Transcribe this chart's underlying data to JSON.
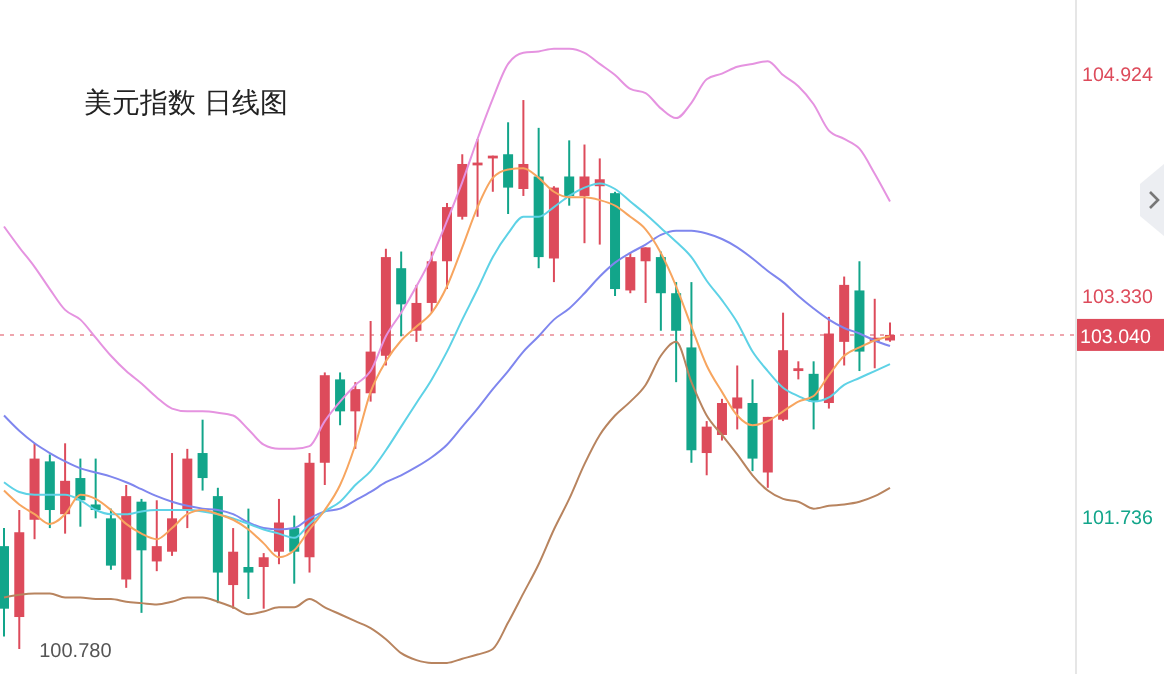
{
  "chart_data": {
    "type": "candlestick",
    "title": "美元指数  日线图",
    "categories": [
      null,
      null,
      null,
      null,
      null,
      null,
      null,
      null,
      null,
      null,
      null,
      null,
      null,
      null,
      null,
      null,
      null,
      null,
      null,
      null,
      null,
      null,
      null,
      null,
      null,
      null,
      null,
      null,
      null,
      null,
      null,
      null,
      null,
      null,
      null,
      null,
      null,
      null,
      null,
      null,
      null,
      null,
      null,
      null,
      null,
      null,
      null,
      null,
      null,
      null,
      null,
      null,
      null,
      null,
      null,
      null,
      null,
      null,
      null
    ],
    "ohlc": [
      [
        101.52,
        101.65,
        100.87,
        101.07
      ],
      [
        101.01,
        101.78,
        100.78,
        101.62
      ],
      [
        101.71,
        102.26,
        101.57,
        102.15
      ],
      [
        102.13,
        102.18,
        101.65,
        101.78
      ],
      [
        101.75,
        102.26,
        101.61,
        101.99
      ],
      [
        102.01,
        102.15,
        101.66,
        101.85
      ],
      [
        101.82,
        102.15,
        101.72,
        101.78
      ],
      [
        101.72,
        101.79,
        101.35,
        101.38
      ],
      [
        101.28,
        101.96,
        101.22,
        101.88
      ],
      [
        101.84,
        101.86,
        101.04,
        101.49
      ],
      [
        101.41,
        101.85,
        101.34,
        101.52
      ],
      [
        101.48,
        102.19,
        101.45,
        101.72
      ],
      [
        101.78,
        102.22,
        101.65,
        102.15
      ],
      [
        102.19,
        102.43,
        101.92,
        102.01
      ],
      [
        101.88,
        101.94,
        101.11,
        101.33
      ],
      [
        101.24,
        101.65,
        101.07,
        101.48
      ],
      [
        101.37,
        101.79,
        101.14,
        101.33
      ],
      [
        101.37,
        101.47,
        101.07,
        101.44
      ],
      [
        101.48,
        101.86,
        101.39,
        101.69
      ],
      [
        101.65,
        101.74,
        101.25,
        101.48
      ],
      [
        101.44,
        102.19,
        101.33,
        102.12
      ],
      [
        102.12,
        102.77,
        101.96,
        102.75
      ],
      [
        102.72,
        102.77,
        102.39,
        102.49
      ],
      [
        102.49,
        102.7,
        102.22,
        102.65
      ],
      [
        102.62,
        103.14,
        102.56,
        102.92
      ],
      [
        102.89,
        103.66,
        102.82,
        103.6
      ],
      [
        103.52,
        103.64,
        103.03,
        103.26
      ],
      [
        103.07,
        103.4,
        102.99,
        103.27
      ],
      [
        103.27,
        103.64,
        103.2,
        103.57
      ],
      [
        103.57,
        103.99,
        103.37,
        103.96
      ],
      [
        103.89,
        104.34,
        103.87,
        104.27
      ],
      [
        104.26,
        104.45,
        103.89,
        104.28
      ],
      [
        104.31,
        104.33,
        104.07,
        104.33
      ],
      [
        104.34,
        104.57,
        103.91,
        104.1
      ],
      [
        104.09,
        104.73,
        104.04,
        104.27
      ],
      [
        104.18,
        104.53,
        103.52,
        103.6
      ],
      [
        103.59,
        104.11,
        103.42,
        104.1
      ],
      [
        104.18,
        104.44,
        103.97,
        104.04
      ],
      [
        104.04,
        104.41,
        103.7,
        104.18
      ],
      [
        104.11,
        104.31,
        103.69,
        104.16
      ],
      [
        104.06,
        104.07,
        103.32,
        103.37
      ],
      [
        103.36,
        103.63,
        103.34,
        103.6
      ],
      [
        103.57,
        103.67,
        103.27,
        103.67
      ],
      [
        103.6,
        103.64,
        103.07,
        103.34
      ],
      [
        103.34,
        103.42,
        102.7,
        103.07
      ],
      [
        102.95,
        103.42,
        102.12,
        102.21
      ],
      [
        102.19,
        102.42,
        102.03,
        102.38
      ],
      [
        102.32,
        102.58,
        102.28,
        102.55
      ],
      [
        102.51,
        102.82,
        102.36,
        102.59
      ],
      [
        102.55,
        102.72,
        102.06,
        102.15
      ],
      [
        102.05,
        102.45,
        101.94,
        102.45
      ],
      [
        102.43,
        103.2,
        102.42,
        102.93
      ],
      [
        102.78,
        102.85,
        102.72,
        102.8
      ],
      [
        102.76,
        102.85,
        102.36,
        102.56
      ],
      [
        102.55,
        103.17,
        102.51,
        103.05
      ],
      [
        102.99,
        103.46,
        102.82,
        103.4
      ],
      [
        103.36,
        103.57,
        102.78,
        102.92
      ],
      [
        102.99,
        103.3,
        102.8,
        103.02
      ],
      [
        103.0,
        103.13,
        102.99,
        103.04
      ]
    ],
    "colors": [
      "#12a58a",
      "#dd4b5b",
      "#dd4b5b",
      "#12a58a",
      "#dd4b5b",
      "#12a58a",
      "#12a58a",
      "#12a58a",
      "#dd4b5b",
      "#12a58a",
      "#dd4b5b",
      "#dd4b5b",
      "#dd4b5b",
      "#12a58a",
      "#12a58a",
      "#dd4b5b",
      "#12a58a",
      "#dd4b5b",
      "#dd4b5b",
      "#12a58a",
      "#dd4b5b",
      "#dd4b5b",
      "#12a58a",
      "#dd4b5b",
      "#dd4b5b",
      "#dd4b5b",
      "#12a58a",
      "#dd4b5b",
      "#dd4b5b",
      "#dd4b5b",
      "#dd4b5b",
      "#dd4b5b",
      "#dd4b5b",
      "#12a58a",
      "#dd4b5b",
      "#12a58a",
      "#dd4b5b",
      "#12a58a",
      "#dd4b5b",
      "#dd4b5b",
      "#12a58a",
      "#dd4b5b",
      "#dd4b5b",
      "#12a58a",
      "#12a58a",
      "#12a58a",
      "#dd4b5b",
      "#dd4b5b",
      "#dd4b5b",
      "#12a58a",
      "#dd4b5b",
      "#dd4b5b",
      "#dd4b5b",
      "#12a58a",
      "#dd4b5b",
      "#dd4b5b",
      "#12a58a",
      "#dd4b5b",
      "#dd4b5b"
    ],
    "series": [
      {
        "type": "line",
        "color": "#e593e0",
        "values": [
          103.82,
          103.67,
          103.53,
          103.37,
          103.22,
          103.15,
          103.02,
          102.89,
          102.78,
          102.69,
          102.59,
          102.51,
          102.49,
          102.49,
          102.48,
          102.46,
          102.36,
          102.25,
          102.22,
          102.22,
          102.24,
          102.42,
          102.56,
          102.68,
          102.78,
          103.03,
          103.2,
          103.39,
          103.6,
          103.86,
          104.14,
          104.45,
          104.74,
          104.99,
          105.07,
          105.08,
          105.1,
          105.1,
          105.07,
          104.99,
          104.91,
          104.81,
          104.78,
          104.67,
          104.6,
          104.71,
          104.88,
          104.92,
          104.97,
          104.99,
          105.01,
          104.91,
          104.83,
          104.7,
          104.51,
          104.45,
          104.38,
          104.2,
          104.0
        ]
      },
      {
        "type": "line",
        "color": "#b8845f",
        "values": [
          101.15,
          101.17,
          101.18,
          101.18,
          101.15,
          101.15,
          101.14,
          101.14,
          101.12,
          101.11,
          101.1,
          101.12,
          101.15,
          101.15,
          101.12,
          101.08,
          101.03,
          101.05,
          101.08,
          101.08,
          101.14,
          101.08,
          101.03,
          100.98,
          100.93,
          100.85,
          100.75,
          100.7,
          100.68,
          100.68,
          100.71,
          100.74,
          100.78,
          100.97,
          101.18,
          101.39,
          101.64,
          101.86,
          102.11,
          102.32,
          102.46,
          102.56,
          102.68,
          102.89,
          102.99,
          102.7,
          102.46,
          102.32,
          102.18,
          102.03,
          101.92,
          101.86,
          101.84,
          101.79,
          101.81,
          101.82,
          101.84,
          101.88,
          101.94
        ]
      },
      {
        "type": "line",
        "color": "#7f86ee",
        "values": [
          102.46,
          102.35,
          102.26,
          102.19,
          102.13,
          102.08,
          102.05,
          102.02,
          101.98,
          101.93,
          101.88,
          101.84,
          101.81,
          101.79,
          101.78,
          101.75,
          101.69,
          101.65,
          101.64,
          101.65,
          101.72,
          101.77,
          101.79,
          101.85,
          101.91,
          101.98,
          102.03,
          102.09,
          102.16,
          102.25,
          102.38,
          102.51,
          102.65,
          102.78,
          102.92,
          103.03,
          103.15,
          103.23,
          103.34,
          103.46,
          103.56,
          103.63,
          103.69,
          103.76,
          103.79,
          103.79,
          103.77,
          103.73,
          103.67,
          103.59,
          103.5,
          103.42,
          103.32,
          103.23,
          103.15,
          103.09,
          103.05,
          103.0,
          102.96
        ]
      },
      {
        "type": "line",
        "color": "#5ed2e6",
        "values": [
          101.98,
          101.91,
          101.89,
          101.89,
          101.89,
          101.85,
          101.78,
          101.75,
          101.75,
          101.77,
          101.78,
          101.78,
          101.78,
          101.77,
          101.75,
          101.72,
          101.68,
          101.64,
          101.61,
          101.58,
          101.68,
          101.77,
          101.84,
          101.96,
          102.06,
          102.21,
          102.38,
          102.55,
          102.72,
          102.92,
          103.15,
          103.37,
          103.6,
          103.77,
          103.89,
          103.89,
          103.96,
          104.04,
          104.1,
          104.13,
          104.09,
          104.0,
          103.91,
          103.81,
          103.71,
          103.6,
          103.43,
          103.29,
          103.13,
          102.92,
          102.78,
          102.66,
          102.6,
          102.56,
          102.59,
          102.68,
          102.73,
          102.78,
          102.83
        ]
      },
      {
        "type": "line",
        "color": "#f7a55f",
        "values": [
          101.92,
          101.82,
          101.75,
          101.68,
          101.75,
          101.89,
          101.86,
          101.78,
          101.68,
          101.61,
          101.57,
          101.65,
          101.75,
          101.78,
          101.75,
          101.71,
          101.64,
          101.54,
          101.44,
          101.49,
          101.64,
          101.78,
          101.96,
          102.25,
          102.63,
          102.85,
          103.0,
          103.1,
          103.2,
          103.39,
          103.67,
          103.96,
          104.17,
          104.23,
          104.24,
          104.17,
          104.07,
          104.03,
          104.03,
          104.01,
          103.97,
          103.89,
          103.8,
          103.63,
          103.39,
          103.1,
          102.82,
          102.63,
          102.46,
          102.39,
          102.42,
          102.49,
          102.56,
          102.6,
          102.75,
          102.89,
          102.95,
          103.0,
          103.03
        ]
      }
    ],
    "ylim": [
      100.6,
      105.45
    ],
    "yticks": [
      {
        "value": 101.736,
        "label": "101.736"
      },
      {
        "value": 103.33,
        "label": "103.330"
      },
      {
        "value": 104.924,
        "label": "104.924"
      }
    ],
    "ref_lines": [
      {
        "axis": "y",
        "value": 103.04,
        "label": "103.040",
        "color": "#dd4b5b",
        "line_style": "dotted"
      }
    ],
    "annotations": [
      "100.780"
    ]
  }
}
